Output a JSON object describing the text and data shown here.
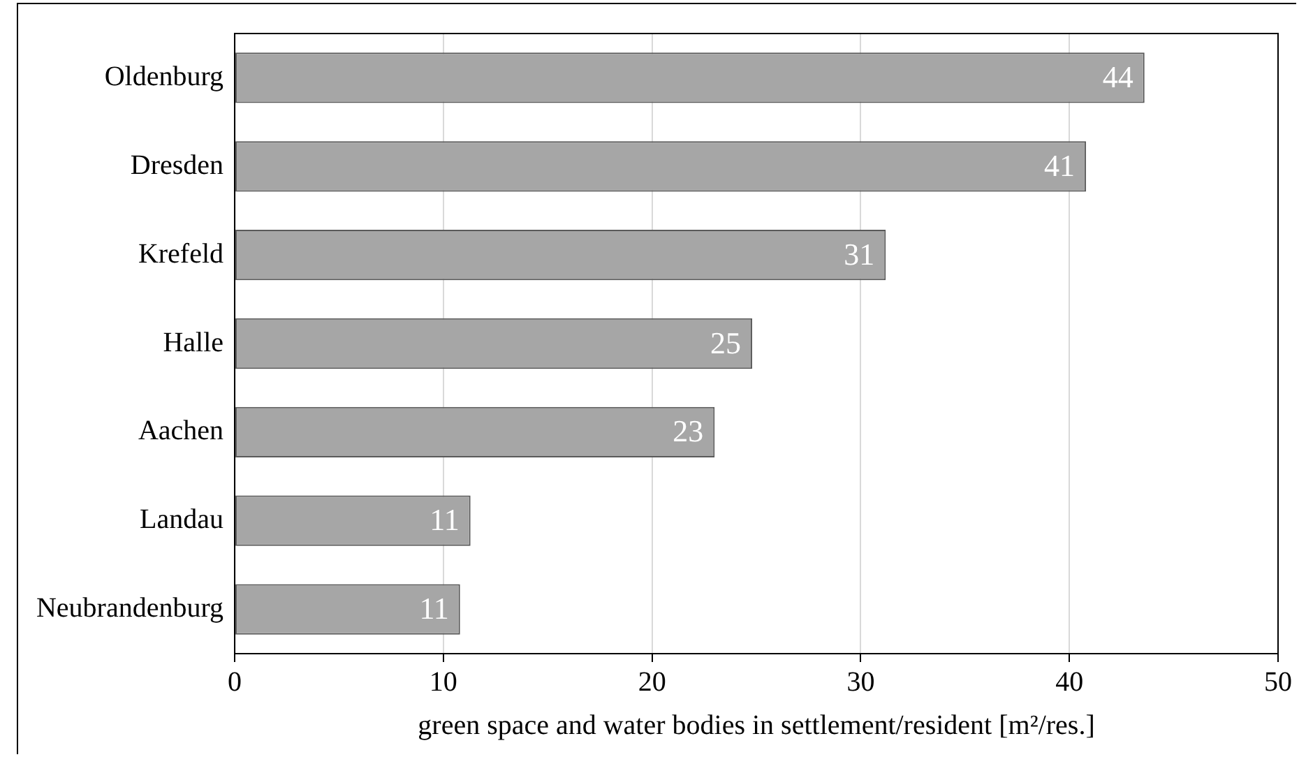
{
  "chart_data": {
    "type": "bar",
    "orientation": "horizontal",
    "categories": [
      "Oldenburg",
      "Dresden",
      "Krefeld",
      "Halle",
      "Aachen",
      "Landau",
      "Neubrandenburg"
    ],
    "values": [
      43.6,
      40.8,
      31.2,
      24.8,
      23.0,
      11.3,
      10.8
    ],
    "value_labels": [
      "44",
      "41",
      "31",
      "25",
      "23",
      "11",
      "11"
    ],
    "color": "#a6a6a6",
    "xlabel": "green space and water bodies in settlement/resident [m²/res.]",
    "xlim": [
      0,
      50
    ],
    "xticks": [
      0,
      10,
      20,
      30,
      40,
      50
    ],
    "grid": "x",
    "legend": false
  }
}
